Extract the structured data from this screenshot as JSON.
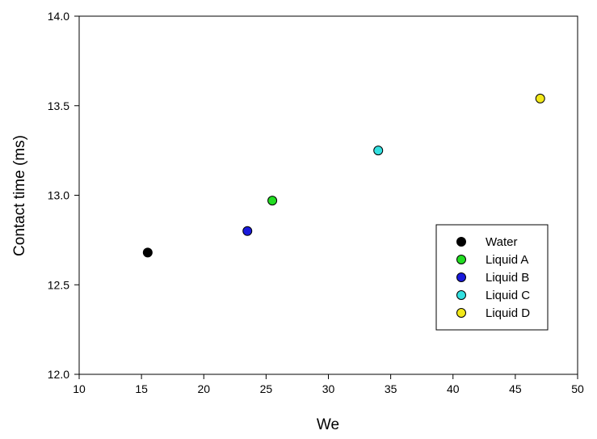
{
  "chart_data": {
    "type": "scatter",
    "title": "",
    "xlabel": "We",
    "ylabel": "Contact time (ms)",
    "xlim": [
      10,
      50
    ],
    "ylim": [
      12.0,
      14.0
    ],
    "xticks": [
      "10",
      "15",
      "20",
      "25",
      "30",
      "35",
      "40",
      "45",
      "50"
    ],
    "yticks": [
      "12.0",
      "12.5",
      "13.0",
      "13.5",
      "14.0"
    ],
    "grid": false,
    "legend_position": "right-middle",
    "series": [
      {
        "name": "Water",
        "color": "#000000",
        "x": [
          15.5
        ],
        "y": [
          12.68
        ]
      },
      {
        "name": "Liquid A",
        "color": "#22dd22",
        "x": [
          25.5
        ],
        "y": [
          12.97
        ]
      },
      {
        "name": "Liquid B",
        "color": "#1a1adc",
        "x": [
          23.5
        ],
        "y": [
          12.8
        ]
      },
      {
        "name": "Liquid C",
        "color": "#33e0e0",
        "x": [
          34.0
        ],
        "y": [
          13.25
        ]
      },
      {
        "name": "Liquid D",
        "color": "#f2e81a",
        "x": [
          47.0
        ],
        "y": [
          13.54
        ]
      }
    ]
  }
}
